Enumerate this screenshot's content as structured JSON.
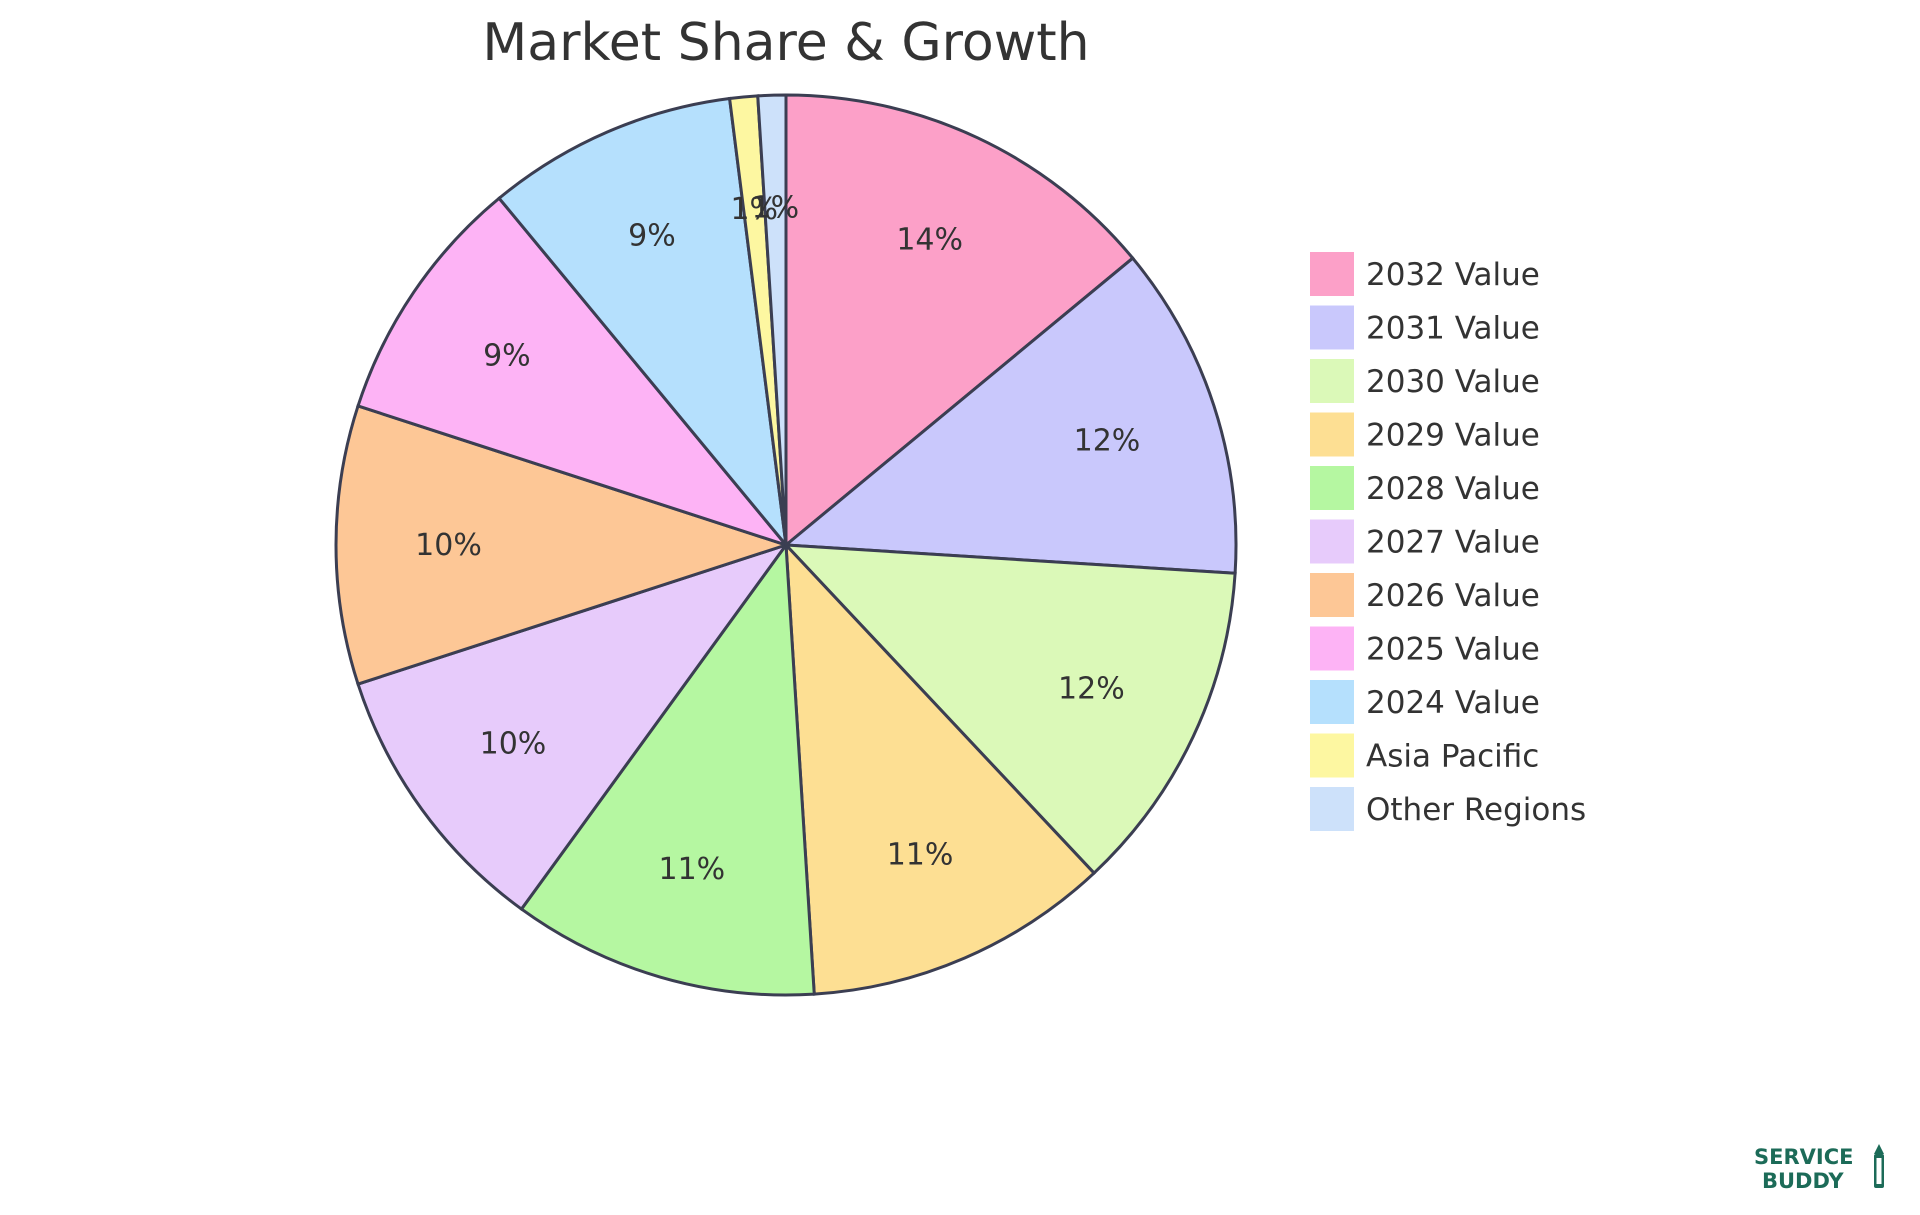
{
  "chart_data": {
    "type": "pie",
    "title": "Market Share & Growth",
    "slices": [
      {
        "label": "2032 Value",
        "value": 14,
        "display": "14%",
        "color": "#fca0c8"
      },
      {
        "label": "2031 Value",
        "value": 12,
        "display": "12%",
        "color": "#c9c8fc"
      },
      {
        "label": "2030 Value",
        "value": 12,
        "display": "12%",
        "color": "#dbf9b8"
      },
      {
        "label": "2029 Value",
        "value": 11,
        "display": "11%",
        "color": "#fddf93"
      },
      {
        "label": "2028 Value",
        "value": 11,
        "display": "11%",
        "color": "#b5f7a1"
      },
      {
        "label": "2027 Value",
        "value": 10,
        "display": "10%",
        "color": "#e7cbfb"
      },
      {
        "label": "2026 Value",
        "value": 10,
        "display": "10%",
        "color": "#fdc796"
      },
      {
        "label": "2025 Value",
        "value": 9,
        "display": "9%",
        "color": "#fdb3f5"
      },
      {
        "label": "2024 Value",
        "value": 9,
        "display": "9%",
        "color": "#b5e0fd"
      },
      {
        "label": "Asia Pacific",
        "value": 1,
        "display": "1%",
        "color": "#fdf7a1"
      },
      {
        "label": "Other Regions",
        "value": 1,
        "display": "1%",
        "color": "#cde1fa"
      }
    ],
    "legend_position": "right",
    "start_angle": "top",
    "direction": "clockwise"
  },
  "branding": {
    "logo_line1": "SERVICE",
    "logo_line2": "BUDDY",
    "logo_color": "#1c6b58"
  }
}
